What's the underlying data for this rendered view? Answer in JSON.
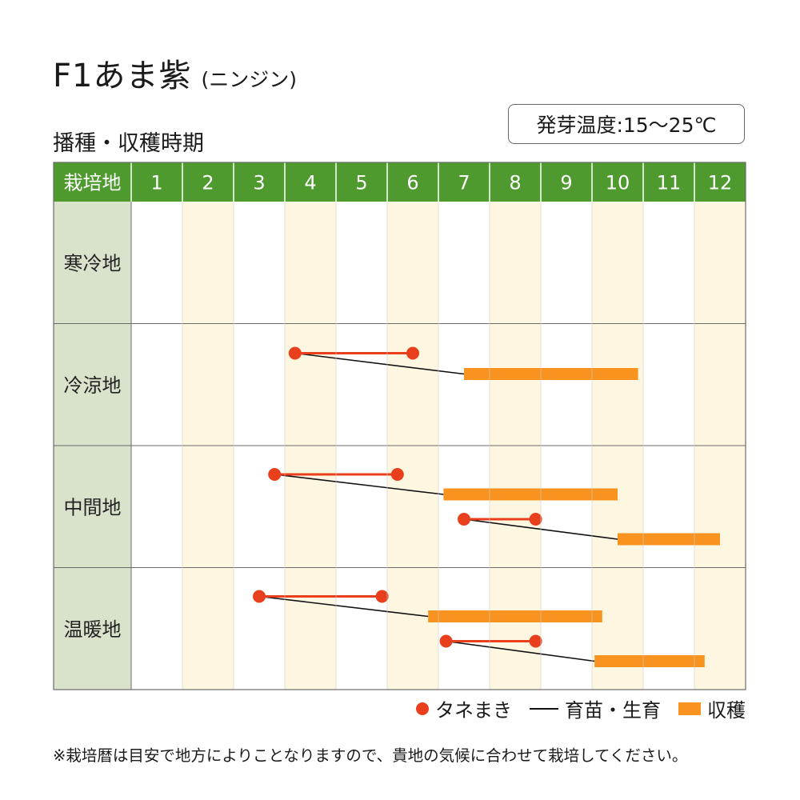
{
  "title": {
    "main": "F1あま紫",
    "sub": "(ニンジン)"
  },
  "section_title": "播種・収穫時期",
  "temperature_note": "発芽温度:15〜25℃",
  "legend": {
    "sowing": "タネまき",
    "growing": "育苗・生育",
    "harvest": "収穫"
  },
  "footnote": "※栽培暦は目安で地方によりことなりますので、貴地の気候に合わせて栽培してください。",
  "colors": {
    "header_green": "#4e9a2f",
    "region_label_bg": "#d9e3cc",
    "alt_month_bg": "#fdf6e0",
    "sowing_red": "#e8401c",
    "harvest_orange": "#f7931e",
    "growth_line": "#111111",
    "grid_line": "#6b6b6b"
  },
  "chart_data": {
    "type": "table",
    "header_label": "栽培地",
    "months": [
      "1",
      "2",
      "3",
      "4",
      "5",
      "6",
      "7",
      "8",
      "9",
      "10",
      "11",
      "12"
    ],
    "regions": [
      {
        "name": "寒冷地",
        "schedules": []
      },
      {
        "name": "冷涼地",
        "schedules": [
          {
            "sow_start": 4.2,
            "sow_end": 6.5,
            "harvest_start": 7.5,
            "harvest_end": 10.9
          }
        ]
      },
      {
        "name": "中間地",
        "schedules": [
          {
            "sow_start": 3.8,
            "sow_end": 6.2,
            "harvest_start": 7.1,
            "harvest_end": 10.5
          },
          {
            "sow_start": 7.5,
            "sow_end": 8.9,
            "harvest_start": 10.5,
            "harvest_end": 12.5
          }
        ]
      },
      {
        "name": "温暖地",
        "schedules": [
          {
            "sow_start": 3.5,
            "sow_end": 5.9,
            "harvest_start": 6.8,
            "harvest_end": 10.2
          },
          {
            "sow_start": 7.15,
            "sow_end": 8.9,
            "harvest_start": 10.05,
            "harvest_end": 12.2
          }
        ]
      }
    ]
  }
}
